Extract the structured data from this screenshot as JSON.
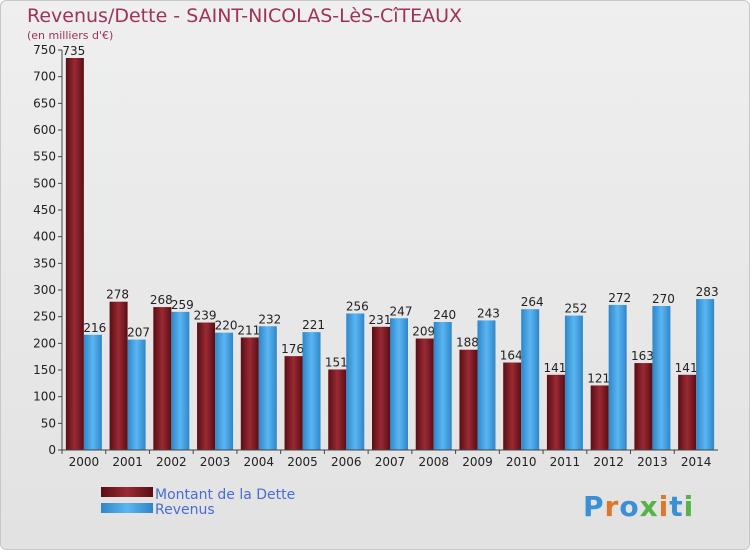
{
  "chart_data": {
    "type": "bar",
    "title": "Revenus/Dette - SAINT-NICOLAS-LèS-CîTEAUX",
    "subtitle": "(en milliers d'€)",
    "categories": [
      "2000",
      "2001",
      "2002",
      "2003",
      "2004",
      "2005",
      "2006",
      "2007",
      "2008",
      "2009",
      "2010",
      "2011",
      "2012",
      "2013",
      "2014"
    ],
    "series": [
      {
        "name": "Montant de la Dette",
        "color": "#7a1a22",
        "values": [
          735,
          278,
          268,
          239,
          211,
          176,
          151,
          231,
          209,
          188,
          164,
          141,
          121,
          163,
          141
        ]
      },
      {
        "name": "Revenus",
        "color": "#3f9fe0",
        "values": [
          216,
          207,
          259,
          220,
          232,
          221,
          256,
          247,
          240,
          243,
          264,
          252,
          272,
          270,
          283
        ]
      }
    ],
    "ylim": [
      0,
      750
    ],
    "yticks": [
      0,
      50,
      100,
      150,
      200,
      250,
      300,
      350,
      400,
      450,
      500,
      550,
      600,
      650,
      700,
      750
    ],
    "grid": false,
    "legend": "bottom-left",
    "logo": "Proxiti"
  }
}
